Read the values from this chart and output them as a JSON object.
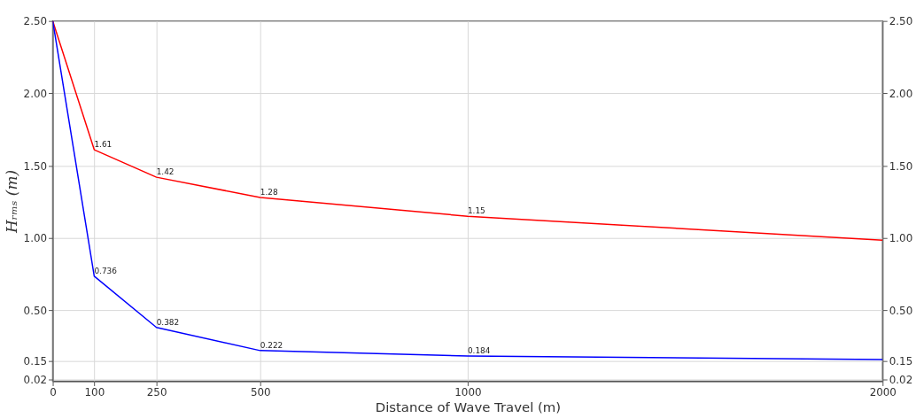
{
  "chart_data": {
    "type": "line",
    "xlabel": "Distance of Wave Travel (m)",
    "ylabel": "Hᵣₘₛ (m)",
    "x": [
      0,
      100,
      250,
      500,
      1000,
      2000
    ],
    "series": [
      {
        "color": "#ff0000",
        "values": [
          2.5,
          1.61,
          1.42,
          1.28,
          1.15,
          0.985
        ],
        "value_labels": [
          null,
          "1.61",
          "1.42",
          "1.28",
          "1.15",
          null
        ]
      },
      {
        "color": "#0000ff",
        "values": [
          2.5,
          0.736,
          0.382,
          0.222,
          0.184,
          0.16
        ],
        "value_labels": [
          null,
          "0.736",
          "0.382",
          "0.222",
          "0.184",
          null
        ]
      }
    ],
    "xlim": [
      0,
      2000
    ],
    "xticks": [
      0,
      100,
      250,
      500,
      1000,
      2000
    ],
    "ylim": [
      0.01,
      2.5
    ],
    "yticks": [
      {
        "value": 0.02,
        "label": "0.02"
      },
      {
        "value": 0.15,
        "label": "0.15"
      },
      {
        "value": 0.5,
        "label": "0.50"
      },
      {
        "value": 1.0,
        "label": "1.00"
      },
      {
        "value": 1.5,
        "label": "1.50"
      },
      {
        "value": 2.0,
        "label": "2.00"
      },
      {
        "value": 2.5,
        "label": "2.50"
      }
    ],
    "y2lim": [
      0.01,
      2.5
    ],
    "y2ticks": [
      {
        "value": 0.02,
        "label": "0.02"
      },
      {
        "value": 0.15,
        "label": "0.15"
      },
      {
        "value": 0.5,
        "label": "0.50"
      },
      {
        "value": 1.0,
        "label": "1.00"
      },
      {
        "value": 1.5,
        "label": "1.50"
      },
      {
        "value": 2.0,
        "label": "2.00"
      },
      {
        "value": 2.5,
        "label": "2.50"
      }
    ],
    "grid": true,
    "marker": "none",
    "line_style": "solid"
  }
}
